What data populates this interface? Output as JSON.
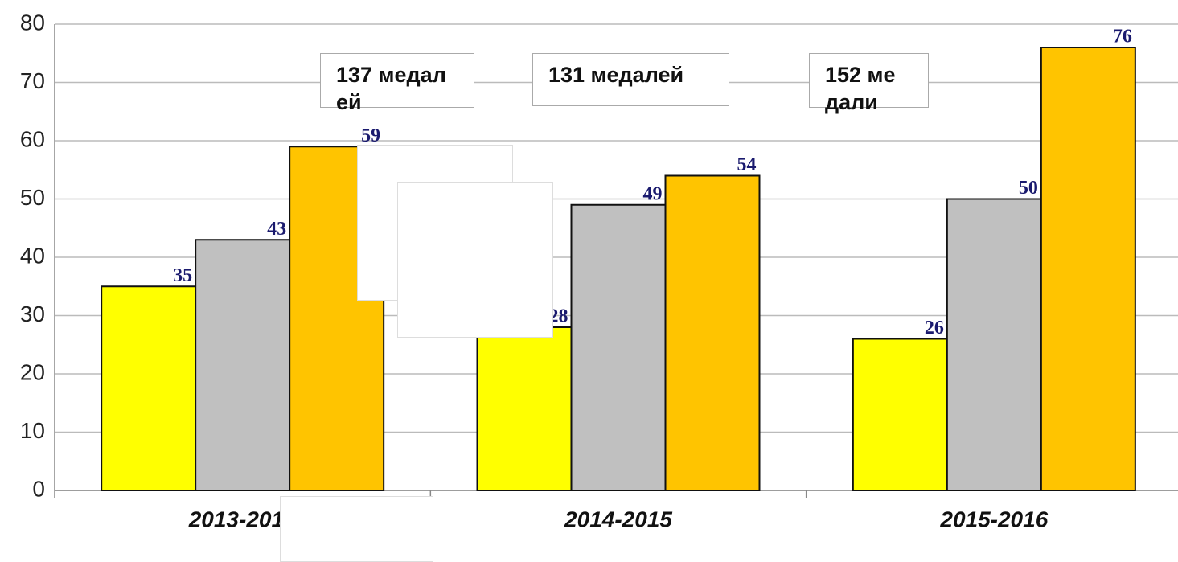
{
  "chart_data": {
    "type": "bar",
    "categories": [
      "2013-2014",
      "2014-2015",
      "2015-2016"
    ],
    "series": [
      {
        "color": "#ffff00",
        "values": [
          35,
          28,
          26
        ]
      },
      {
        "color": "#c0c0c0",
        "values": [
          43,
          49,
          50
        ]
      },
      {
        "color": "#ffc400",
        "values": [
          59,
          54,
          76
        ]
      }
    ],
    "annotations": [
      "137 медалей",
      "131 медалей",
      "152 медали"
    ],
    "ylim": [
      0,
      80
    ],
    "yticks": [
      0,
      10,
      20,
      30,
      40,
      50,
      60,
      70,
      80
    ],
    "grid": true
  }
}
